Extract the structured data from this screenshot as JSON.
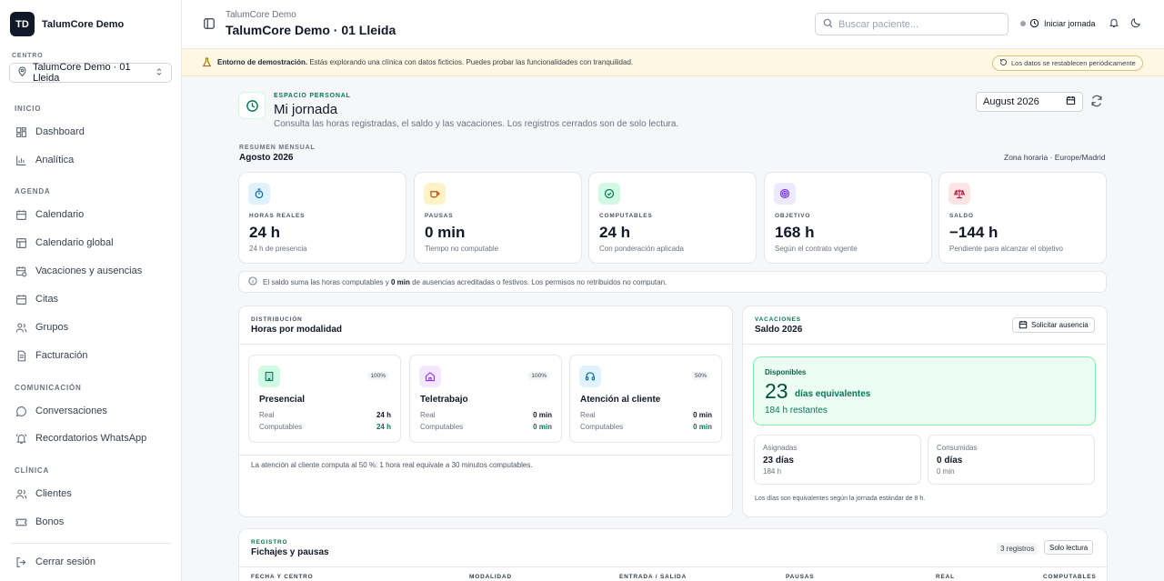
{
  "sidebar": {
    "brand_initials": "TD",
    "brand_name": "TalumCore Demo",
    "centro_label": "CENTRO",
    "centro_value": "TalumCore Demo · 01 Lleida",
    "sections": {
      "inicio": "INICIO",
      "agenda": "AGENDA",
      "comunicacion": "COMUNICACIÓN",
      "clinica": "CLÍNICA"
    },
    "items": {
      "dashboard": "Dashboard",
      "analitica": "Analítica",
      "calendario": "Calendario",
      "calendario_global": "Calendario global",
      "vacaciones": "Vacaciones y ausencias",
      "citas": "Citas",
      "grupos": "Grupos",
      "facturacion": "Facturación",
      "conversaciones": "Conversaciones",
      "recordatorios": "Recordatorios WhatsApp",
      "clientes": "Clientes",
      "bonos": "Bonos"
    },
    "logout": "Cerrar sesión"
  },
  "header": {
    "subtitle": "TalumCore Demo",
    "title": "TalumCore Demo · 01 Lleida",
    "search_placeholder": "Buscar paciente...",
    "iniciar": "Iniciar jornada"
  },
  "banner": {
    "bold": "Entorno de demostración.",
    "text": " Estás explorando una clínica con datos ficticios. Puedes probar las funcionalidades con tranquilidad.",
    "pill": "Los datos se restablecen periódicamente"
  },
  "page": {
    "eyebrow": "ESPACIO PERSONAL",
    "title": "Mi jornada",
    "description": "Consulta las horas registradas, el saldo y las vacaciones. Los registros cerrados son de solo lectura.",
    "month_value": "August 2026"
  },
  "resumen": {
    "eyebrow": "RESUMEN MENSUAL",
    "title": "Agosto 2026",
    "timezone": "Zona horaria · Europe/Madrid",
    "stats": [
      {
        "label": "HORAS REALES",
        "value": "24 h",
        "hint": "24 h de presencia"
      },
      {
        "label": "PAUSAS",
        "value": "0 min",
        "hint": "Tiempo no computable"
      },
      {
        "label": "COMPUTABLES",
        "value": "24 h",
        "hint": "Con ponderación aplicada"
      },
      {
        "label": "OBJETIVO",
        "value": "168 h",
        "hint": "Según el contrato vigente"
      },
      {
        "label": "SALDO",
        "value": "−144 h",
        "hint": "Pendiente para alcanzar el objetivo"
      }
    ],
    "note_pre": "El saldo suma las horas computables y ",
    "note_bold": "0 min",
    "note_post": " de ausencias acreditadas o festivos. Los permisos no retribuidos no computan."
  },
  "distribucion": {
    "eyebrow": "DISTRIBUCIÓN",
    "title": "Horas por modalidad",
    "real_label": "Real",
    "comp_label": "Computables",
    "modalidades": [
      {
        "name": "Presencial",
        "pct": "100%",
        "real": "24 h",
        "comp": "24 h"
      },
      {
        "name": "Teletrabajo",
        "pct": "100%",
        "real": "0 min",
        "comp": "0 min"
      },
      {
        "name": "Atención al cliente",
        "pct": "50%",
        "real": "0 min",
        "comp": "0 min"
      }
    ],
    "footer": "La atención al cliente computa al 50 %: 1 hora real equivale a 30 minutos computables."
  },
  "vacaciones": {
    "eyebrow": "VACACIONES",
    "title": "Saldo 2026",
    "button": "Solicitar ausencia",
    "disponibles_label": "Disponibles",
    "disponibles_num": "23",
    "disponibles_unit": "días equivalentes",
    "restantes": "184 h restantes",
    "asignadas": {
      "label": "Asignadas",
      "value": "23 días",
      "hours": "184 h"
    },
    "consumidas": {
      "label": "Consumidas",
      "value": "0 días",
      "hours": "0 min"
    },
    "footer": "Los días son equivalentes según la jornada estándar de 8 h."
  },
  "registro": {
    "eyebrow": "REGISTRO",
    "title": "Fichajes y pausas",
    "count": "3 registros",
    "readonly": "Solo lectura",
    "columns": [
      "FECHA Y CENTRO",
      "MODALIDAD",
      "ENTRADA / SALIDA",
      "PAUSAS",
      "REAL",
      "COMPUTABLES"
    ]
  },
  "colors": {
    "accent": "#047857",
    "banner_bg": "#fdf7e3",
    "saldo_negative": "#111827"
  }
}
